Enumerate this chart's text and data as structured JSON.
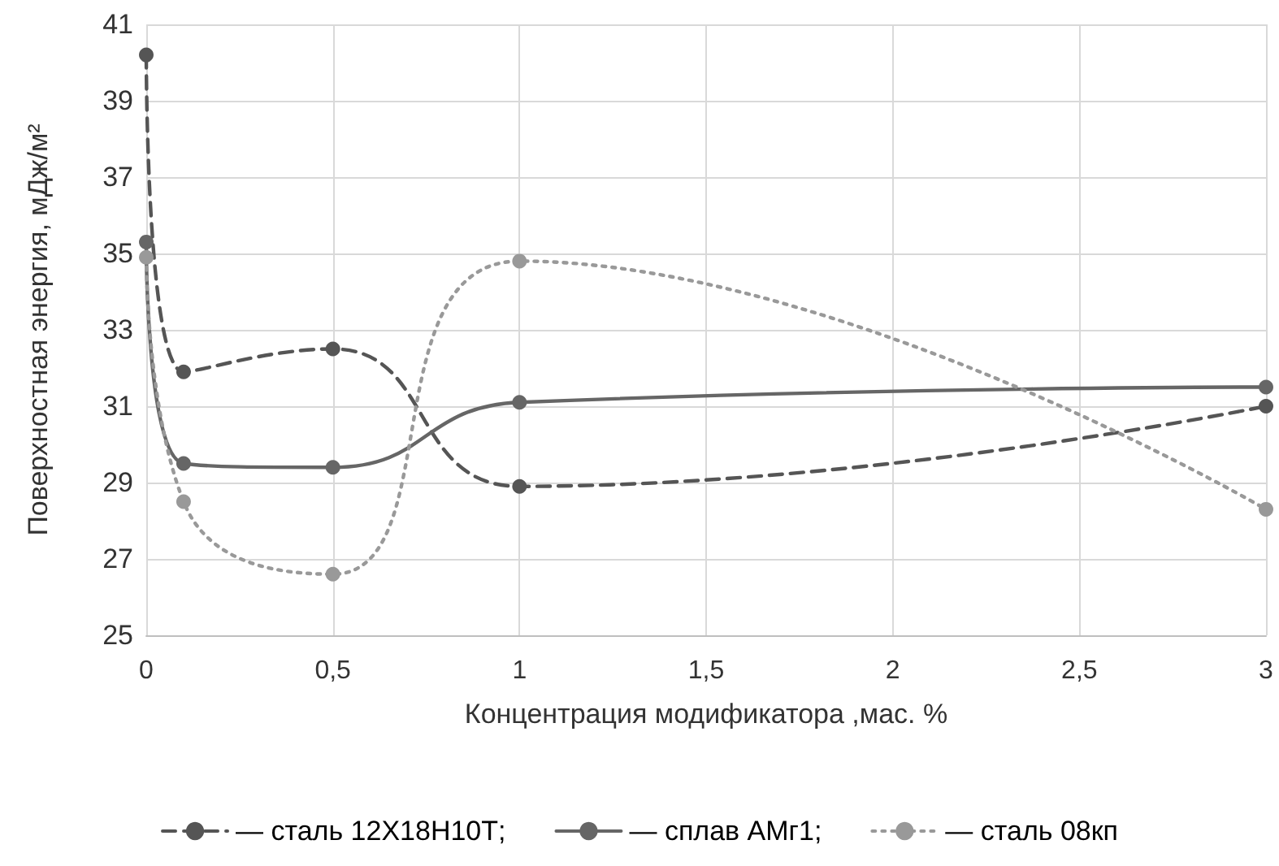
{
  "chart_data": {
    "type": "line",
    "xlabel": "Концентрация модификатора ,мас. %",
    "ylabel": "Поверхностная энергия, мДж/м²",
    "x": [
      0,
      0.1,
      0.5,
      1,
      3
    ],
    "series": [
      {
        "name": "— сталь 12Х18Н10Т;",
        "color": "#555555",
        "line_style": "dashed",
        "values": [
          40.2,
          31.9,
          32.5,
          28.9,
          31.0
        ]
      },
      {
        "name": "— сплав АМг1;",
        "color": "#666666",
        "line_style": "solid",
        "values": [
          35.3,
          29.5,
          29.4,
          31.1,
          31.5
        ]
      },
      {
        "name": "— сталь 08кп",
        "color": "#999999",
        "line_style": "dotted",
        "values": [
          34.9,
          28.5,
          26.6,
          34.8,
          28.3
        ]
      }
    ],
    "xlim": [
      0,
      3
    ],
    "xticks": [
      0,
      {
        "value": 0.5,
        "label": "0,5"
      },
      1,
      {
        "value": 1.5,
        "label": "1,5"
      },
      2,
      {
        "value": 2.5,
        "label": "2,5"
      },
      3
    ],
    "ylim": [
      25,
      41
    ],
    "yticks": [
      25,
      27,
      29,
      31,
      33,
      35,
      37,
      39,
      41
    ],
    "grid": true,
    "legend": "bottom",
    "marker": "circle"
  }
}
